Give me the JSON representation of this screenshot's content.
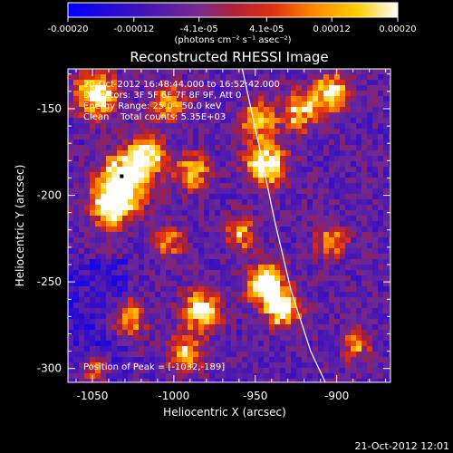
{
  "figure": {
    "title": "Reconstructed RHESSI Image",
    "footer_timestamp": "21-Oct-2012 12:01"
  },
  "colorbar": {
    "tick_labels": [
      "-0.00020",
      "-0.00012",
      "-4.1e-05",
      "4.1e-05",
      "0.00012",
      "0.00020"
    ],
    "tick_values": [
      -0.0002,
      -0.00012,
      -4.1e-05,
      4.1e-05,
      0.00012,
      0.0002
    ],
    "range": [
      -0.0002,
      0.0002
    ],
    "unit_label": "(photons cm⁻² s⁻¹ asec⁻²)",
    "colors": [
      "#0000ff",
      "#5a1a9e",
      "#7a2a8e",
      "#e03010",
      "#ff8a00",
      "#ffd000",
      "#ffffff"
    ]
  },
  "annotations": {
    "time_range": "20-Oct-2012 16:48:44.000 to 16:52:42.000",
    "detectors": "Detectors: 3F 5F 6F 7F 8F 9F, Att 0",
    "energy_range": "Energy Range: 25.0 - 50.0 keV",
    "algorithm": "Clean    Total counts: 5.35E+03",
    "peak_position": "Position of Peak = [-1032,-189]"
  },
  "chart_data": {
    "type": "heatmap",
    "title": "Reconstructed RHESSI Image",
    "xlabel": "Heliocentric X (arcsec)",
    "ylabel": "Heliocentric Y (arcsec)",
    "xlim": [
      -1065,
      -867
    ],
    "ylim": [
      -308,
      -127
    ],
    "x_tick_values": [
      -1050,
      -1000,
      -950,
      -900
    ],
    "x_tick_labels": [
      "-1050",
      "-1000",
      "-950",
      "-900"
    ],
    "y_tick_values": [
      -150,
      -200,
      -250,
      -300
    ],
    "y_tick_labels": [
      "-150",
      "-200",
      "-250",
      "-300"
    ],
    "value_range": [
      -0.0002,
      0.0002
    ],
    "peak": [
      -1032,
      -189
    ],
    "limb_curve": [
      [
        -958,
        -127
      ],
      [
        -948,
        -170
      ],
      [
        -938,
        -215
      ],
      [
        -928,
        -255
      ],
      [
        -916,
        -290
      ],
      [
        -907,
        -308
      ]
    ]
  }
}
